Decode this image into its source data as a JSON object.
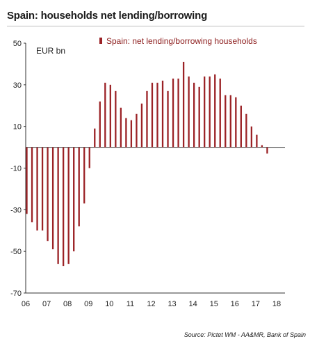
{
  "title": "Spain: households net lending/borrowing",
  "source": "Source: Pictet WM - AA&MR, Bank of Spain",
  "chart_data": {
    "type": "bar",
    "ylabel": "EUR bn",
    "legend": "Spain: net lending/borrowing households",
    "legend_position": "top",
    "bar_color": "#9b2226",
    "ylim": [
      -70,
      50
    ],
    "yticks": [
      50,
      30,
      10,
      -10,
      -30,
      -50,
      -70
    ],
    "x_labels": [
      "06",
      "07",
      "08",
      "09",
      "10",
      "11",
      "12",
      "13",
      "14",
      "15",
      "16",
      "17",
      "18"
    ],
    "x_start": 2006,
    "x_step": 0.25,
    "values": [
      -32,
      -36,
      -40,
      -40,
      -45,
      -49,
      -56,
      -57,
      -56,
      -50,
      -38,
      -27,
      -10,
      9,
      22,
      31,
      30,
      27,
      19,
      14,
      13,
      16,
      21,
      27,
      31,
      31,
      32,
      27,
      33,
      33,
      41,
      34,
      31,
      29,
      34,
      34,
      35,
      33,
      25,
      25,
      24,
      20,
      16,
      10,
      6,
      1,
      -3
    ],
    "grid": false
  }
}
